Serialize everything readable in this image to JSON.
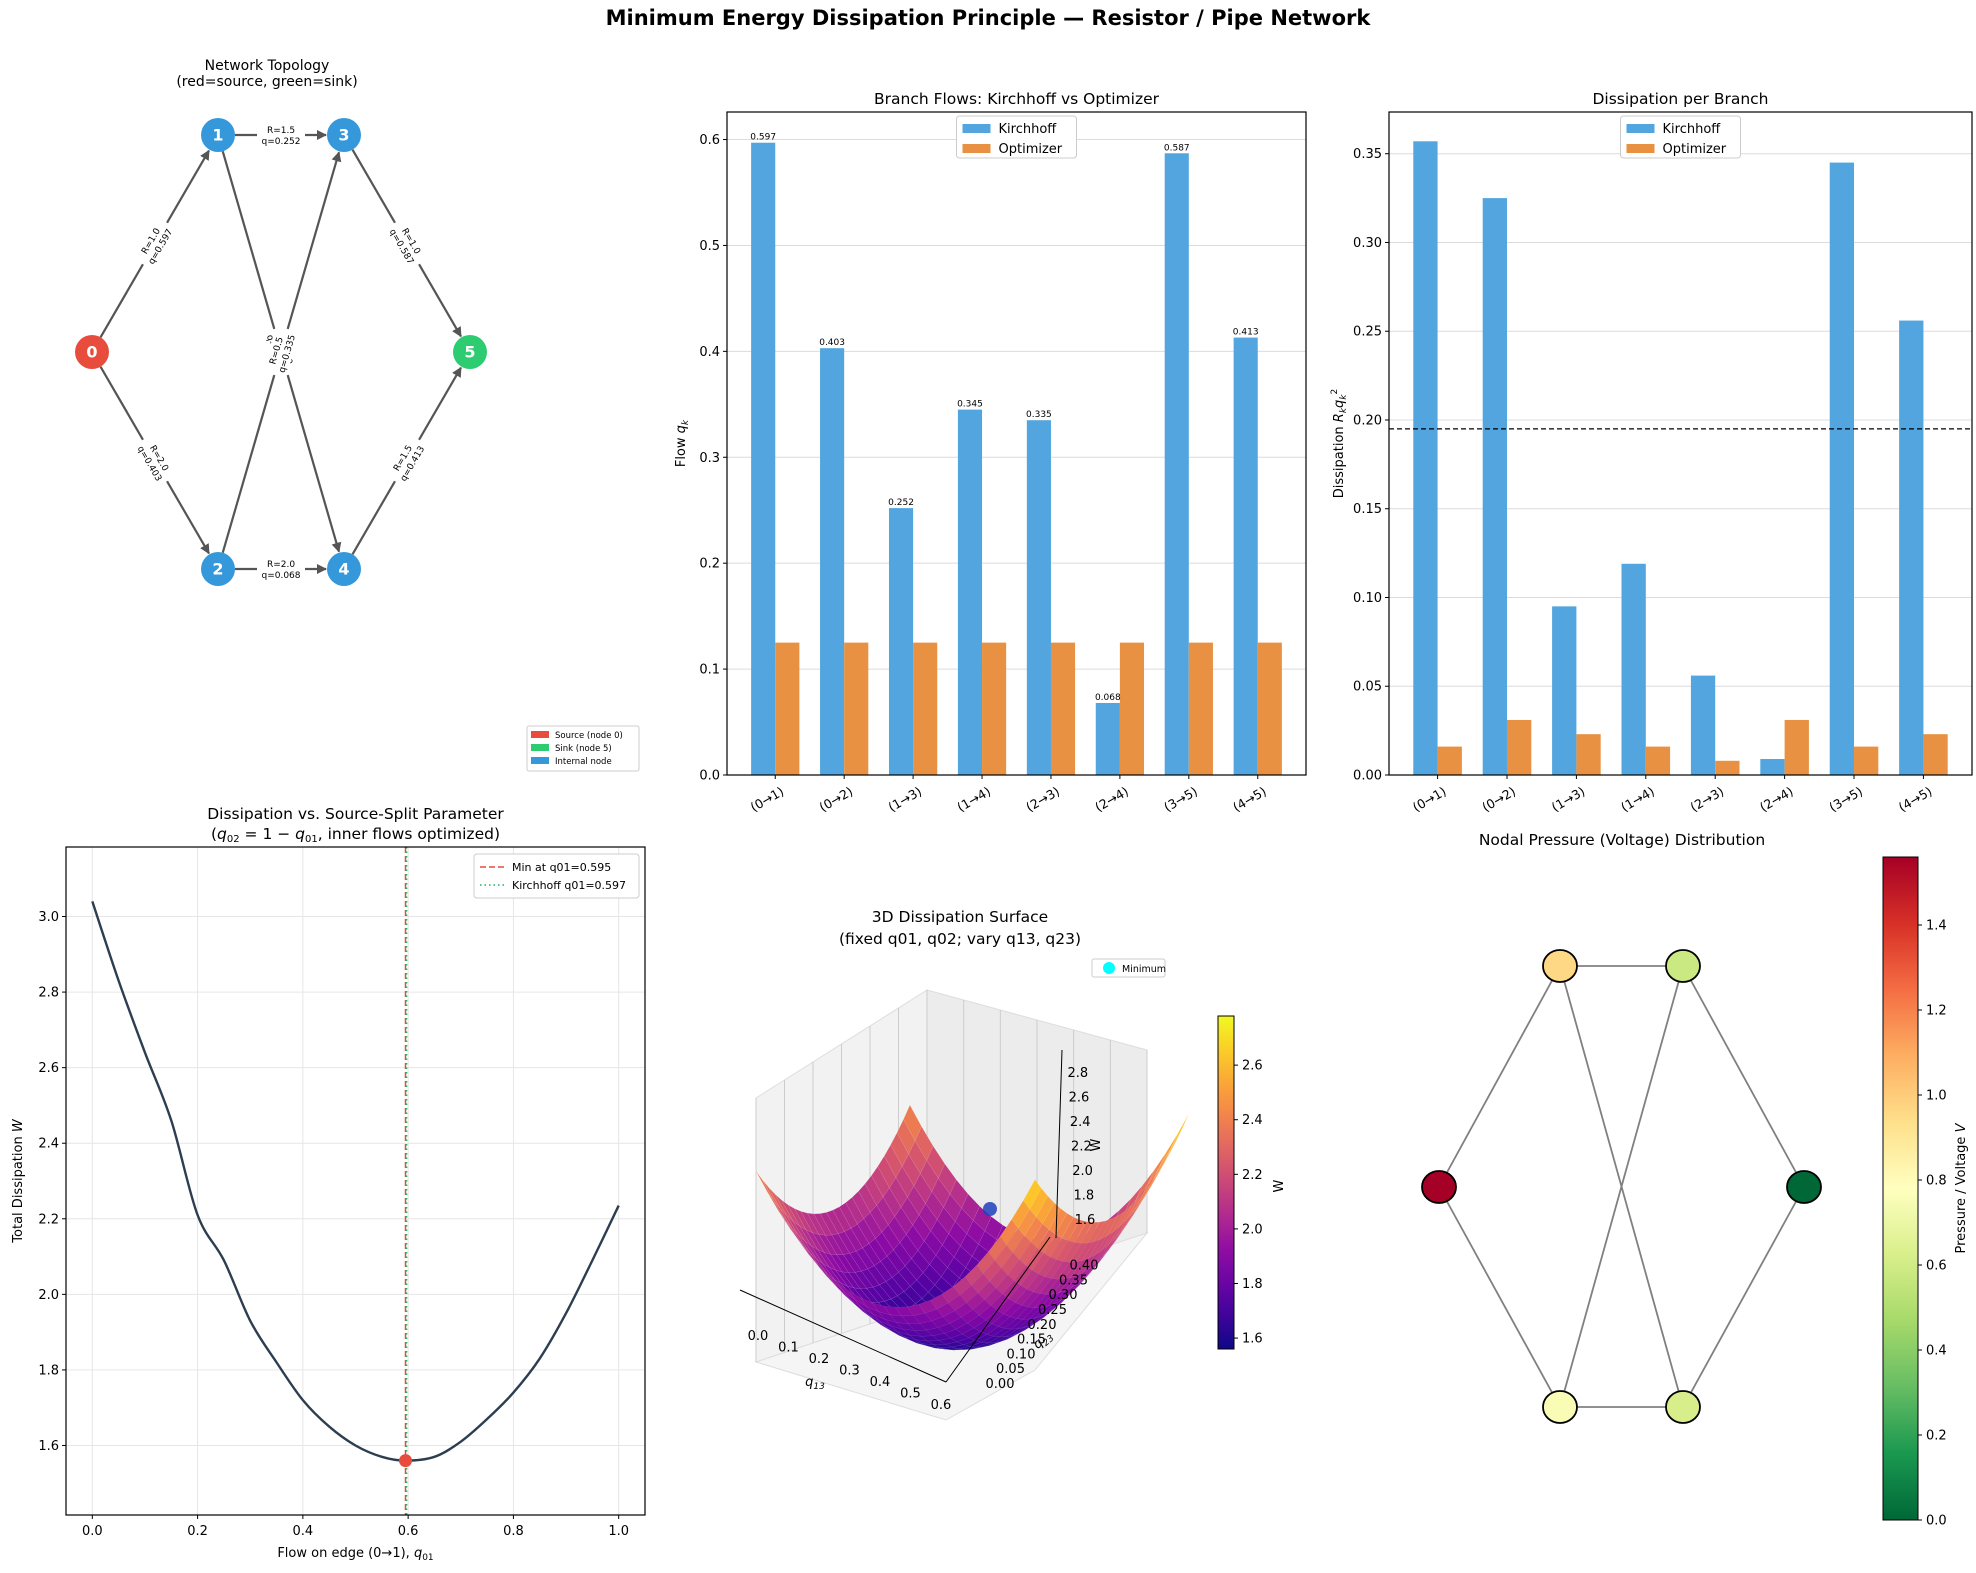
{
  "figure": {
    "suptitle": "Minimum Energy Dissipation Principle — Resistor / Pipe Network"
  },
  "colors": {
    "source": "#e74c3c",
    "sink": "#2ecc71",
    "internal": "#3498db",
    "kirchhoff": "#52a5de",
    "optimizer": "#e89143",
    "curve": "#2c3e50",
    "min_marker": "#e74c3c",
    "kirchhoff_line": "#27ae60",
    "edge": "#555555"
  },
  "chart_data": [
    {
      "id": "topology",
      "type": "network",
      "title_line1": "Network Topology",
      "title_line2": "(red=source, green=sink)",
      "nodes": [
        {
          "id": "0",
          "role": "source"
        },
        {
          "id": "1",
          "role": "internal"
        },
        {
          "id": "2",
          "role": "internal"
        },
        {
          "id": "3",
          "role": "internal"
        },
        {
          "id": "4",
          "role": "internal"
        },
        {
          "id": "5",
          "role": "sink"
        }
      ],
      "edges": [
        {
          "from": "0",
          "to": "1",
          "R": "R=1.0",
          "q": "q=0.597"
        },
        {
          "from": "0",
          "to": "2",
          "R": "R=2.0",
          "q": "q=0.403"
        },
        {
          "from": "1",
          "to": "3",
          "R": "R=1.5",
          "q": "q=0.252"
        },
        {
          "from": "1",
          "to": "4",
          "R": "R=1.0",
          "q": "q=0.345"
        },
        {
          "from": "2",
          "to": "3",
          "R": "R=0.5",
          "q": "q=0.335"
        },
        {
          "from": "2",
          "to": "4",
          "R": "R=2.0",
          "q": "q=0.068"
        },
        {
          "from": "3",
          "to": "5",
          "R": "R=1.0",
          "q": "q=0.587"
        },
        {
          "from": "4",
          "to": "5",
          "R": "R=1.5",
          "q": "q=0.413"
        }
      ],
      "legend": [
        "Source (node 0)",
        "Sink (node 5)",
        "Internal node"
      ],
      "legend_position": "bottom-right"
    },
    {
      "id": "flows",
      "type": "bar",
      "title": "Branch Flows: Kirchhoff vs Optimizer",
      "ylabel": "Flow q_k",
      "categories": [
        "(0→1)",
        "(0→2)",
        "(1→3)",
        "(1→4)",
        "(2→3)",
        "(2→4)",
        "(3→5)",
        "(4→5)"
      ],
      "series": [
        {
          "name": "Kirchhoff",
          "values": [
            0.597,
            0.403,
            0.252,
            0.345,
            0.335,
            0.068,
            0.587,
            0.413
          ]
        },
        {
          "name": "Optimizer",
          "values": [
            0.125,
            0.125,
            0.125,
            0.125,
            0.125,
            0.125,
            0.125,
            0.125
          ]
        }
      ],
      "data_labels": [
        "0.597",
        "0.403",
        "0.252",
        "0.345",
        "0.335",
        "0.068",
        "0.587",
        "0.413"
      ],
      "ylim": [
        0,
        0.626
      ],
      "yticks": [
        "0.0",
        "0.1",
        "0.2",
        "0.3",
        "0.4",
        "0.5",
        "0.6"
      ],
      "ytick_values": [
        0,
        0.1,
        0.2,
        0.3,
        0.4,
        0.5,
        0.6
      ],
      "grid": "y",
      "legend_position": "top-center"
    },
    {
      "id": "dissipation",
      "type": "bar",
      "title": "Dissipation per Branch",
      "ylabel": "Dissipation R_k q_k^2",
      "categories": [
        "(0→1)",
        "(0→2)",
        "(1→3)",
        "(1→4)",
        "(2→3)",
        "(2→4)",
        "(3→5)",
        "(4→5)"
      ],
      "series": [
        {
          "name": "Kirchhoff",
          "values": [
            0.357,
            0.325,
            0.095,
            0.119,
            0.056,
            0.009,
            0.345,
            0.256
          ]
        },
        {
          "name": "Optimizer",
          "values": [
            0.016,
            0.031,
            0.023,
            0.016,
            0.008,
            0.031,
            0.016,
            0.023
          ]
        }
      ],
      "hline": 0.195,
      "ylim": [
        0,
        0.3735
      ],
      "yticks": [
        "0.00",
        "0.05",
        "0.10",
        "0.15",
        "0.20",
        "0.25",
        "0.30",
        "0.35"
      ],
      "ytick_values": [
        0,
        0.05,
        0.1,
        0.15,
        0.2,
        0.25,
        0.3,
        0.35
      ],
      "grid": "y",
      "legend_position": "top-center"
    },
    {
      "id": "split",
      "type": "line",
      "title_line1": "Dissipation vs. Source-Split Parameter",
      "title_line2": "(q02 = 1 − q01, inner flows optimized)",
      "xlabel": "Flow on edge (0→1),  q01",
      "ylabel": "Total Dissipation W",
      "x": [
        0.0,
        0.05,
        0.1,
        0.15,
        0.2,
        0.25,
        0.3,
        0.35,
        0.4,
        0.45,
        0.5,
        0.55,
        0.595,
        0.65,
        0.7,
        0.75,
        0.8,
        0.85,
        0.9,
        0.95,
        1.0
      ],
      "y": [
        3.04,
        2.83,
        2.64,
        2.46,
        2.21,
        2.09,
        1.93,
        1.82,
        1.72,
        1.65,
        1.6,
        1.57,
        1.56,
        1.57,
        1.61,
        1.67,
        1.74,
        1.83,
        1.95,
        2.09,
        2.235
      ],
      "min_point": {
        "x": 0.595,
        "y": 1.56
      },
      "vlines": [
        {
          "label": "Min at q01=0.595",
          "x": 0.595,
          "style": "dashed"
        },
        {
          "label": "Kirchhoff q01=0.597",
          "x": 0.597,
          "style": "dotted"
        }
      ],
      "xlim": [
        -0.05,
        1.05
      ],
      "ylim": [
        1.416,
        3.184
      ],
      "xticks": [
        "0.0",
        "0.2",
        "0.4",
        "0.6",
        "0.8",
        "1.0"
      ],
      "xtick_values": [
        0,
        0.2,
        0.4,
        0.6,
        0.8,
        1.0
      ],
      "yticks": [
        "1.6",
        "1.8",
        "2.0",
        "2.2",
        "2.4",
        "2.6",
        "2.8",
        "3.0"
      ],
      "ytick_values": [
        1.6,
        1.8,
        2.0,
        2.2,
        2.4,
        2.6,
        2.8,
        3.0
      ],
      "grid": true,
      "legend_position": "top-right"
    },
    {
      "id": "surface",
      "type": "surface3d",
      "title_line1": "3D Dissipation Surface",
      "title_line2": "(fixed q01, q02; vary q13, q23)",
      "xlabel": "q13",
      "ylabel": "q23",
      "zlabel": "W",
      "xticks": [
        "0.0",
        "0.1",
        "0.2",
        "0.3",
        "0.4",
        "0.5",
        "0.6"
      ],
      "yticks": [
        "0.00",
        "0.05",
        "0.10",
        "0.15",
        "0.20",
        "0.25",
        "0.30",
        "0.35",
        "0.40"
      ],
      "zticks": [
        "1.6",
        "1.8",
        "2.0",
        "2.2",
        "2.4",
        "2.6",
        "2.8"
      ],
      "colorbar_label": "W",
      "colorbar_ticks": [
        "1.6",
        "1.8",
        "2.0",
        "2.2",
        "2.4",
        "2.6"
      ],
      "colorbar_range": [
        1.56,
        2.78
      ],
      "colormap": "plasma",
      "legend": "Minimum",
      "legend_position": "top-right"
    },
    {
      "id": "pressure",
      "type": "network",
      "title": "Nodal Pressure (Voltage) Distribution",
      "node_pressures": [
        {
          "id": "0",
          "value": 1.56
        },
        {
          "id": "1",
          "value": 0.96
        },
        {
          "id": "2",
          "value": 0.75
        },
        {
          "id": "3",
          "value": 0.58
        },
        {
          "id": "4",
          "value": 0.62
        },
        {
          "id": "5",
          "value": 0.0
        }
      ],
      "colorbar_label": "Pressure / Voltage V",
      "colorbar_ticks": [
        "0.0",
        "0.2",
        "0.4",
        "0.6",
        "0.8",
        "1.0",
        "1.2",
        "1.4"
      ],
      "colorbar_range": [
        0,
        1.56
      ],
      "colormap": "RdYlGn_r"
    }
  ]
}
